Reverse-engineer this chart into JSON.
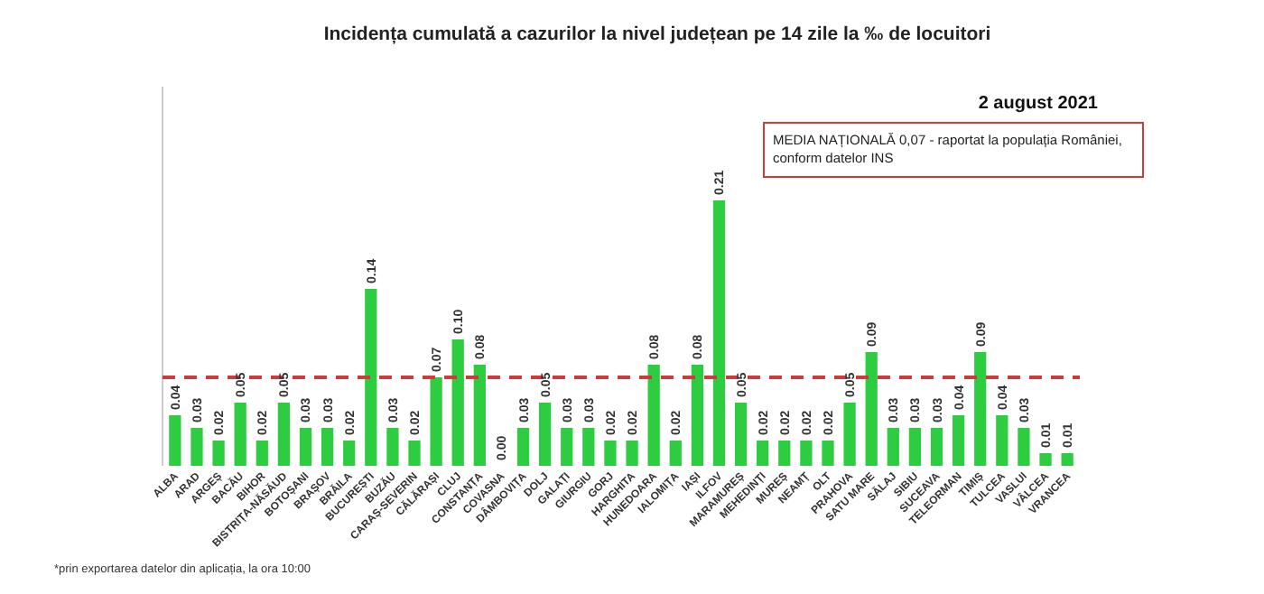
{
  "chart_data": {
    "type": "bar",
    "title": "Incidența cumulată a cazurilor la nivel județean pe 14 zile   la ‰ de locuitori",
    "subtitle": "2 august 2021",
    "categories": [
      "ALBA",
      "ARAD",
      "ARGEȘ",
      "BACĂU",
      "BIHOR",
      "BISTRIȚA-NĂSĂUD",
      "BOTOȘANI",
      "BRAȘOV",
      "BRĂILA",
      "BUCUREȘTI",
      "BUZĂU",
      "CARAȘ-SEVERIN",
      "CĂLĂRAȘI",
      "CLUJ",
      "CONSTANȚA",
      "COVASNA",
      "DÂMBOVIȚA",
      "DOLJ",
      "GALAȚI",
      "GIURGIU",
      "GORJ",
      "HARGHITA",
      "HUNEDOARA",
      "IALOMIȚA",
      "IAȘI",
      "ILFOV",
      "MARAMUREȘ",
      "MEHEDINȚI",
      "MUREȘ",
      "NEAMȚ",
      "OLT",
      "PRAHOVA",
      "SATU MARE",
      "SĂLAJ",
      "SIBIU",
      "SUCEAVA",
      "TELEORMAN",
      "TIMIȘ",
      "TULCEA",
      "VASLUI",
      "VÂLCEA",
      "VRANCEA"
    ],
    "values": [
      0.04,
      0.03,
      0.02,
      0.05,
      0.02,
      0.05,
      0.03,
      0.03,
      0.02,
      0.14,
      0.03,
      0.02,
      0.07,
      0.1,
      0.08,
      0.0,
      0.03,
      0.05,
      0.03,
      0.03,
      0.02,
      0.02,
      0.08,
      0.02,
      0.08,
      0.21,
      0.05,
      0.02,
      0.02,
      0.02,
      0.02,
      0.05,
      0.09,
      0.03,
      0.03,
      0.03,
      0.04,
      0.09,
      0.04,
      0.03,
      0.01,
      0.01
    ],
    "value_labels": [
      "0.04",
      "0.03",
      "0.02",
      "0.05",
      "0.02",
      "0.05",
      "0.03",
      "0.03",
      "0.02",
      "0.14",
      "0.03",
      "0.02",
      "0.07",
      "0.10",
      "0.08",
      "0.00",
      "0.03",
      "0.05",
      "0.03",
      "0.03",
      "0.02",
      "0.02",
      "0.08",
      "0.02",
      "0.08",
      "0.21",
      "0.05",
      "0.02",
      "0.02",
      "0.02",
      "0.02",
      "0.05",
      "0.09",
      "0.03",
      "0.03",
      "0.03",
      "0.04",
      "0.09",
      "0.04",
      "0.03",
      "0.01",
      "0.01"
    ],
    "color": "#2ecc40",
    "ylim": [
      0,
      0.3
    ],
    "tick_labels": "x",
    "ref_lines": [
      {
        "axis": "y",
        "value": 0.07,
        "color": "#d03a3a",
        "line_style": "dashed"
      }
    ],
    "annotations": [
      "MEDIA NAȚIONALĂ 0,07 - raportat la populația României, conform datelor INS",
      "*prin exportarea datelor din aplicația, la ora 10:00"
    ]
  }
}
